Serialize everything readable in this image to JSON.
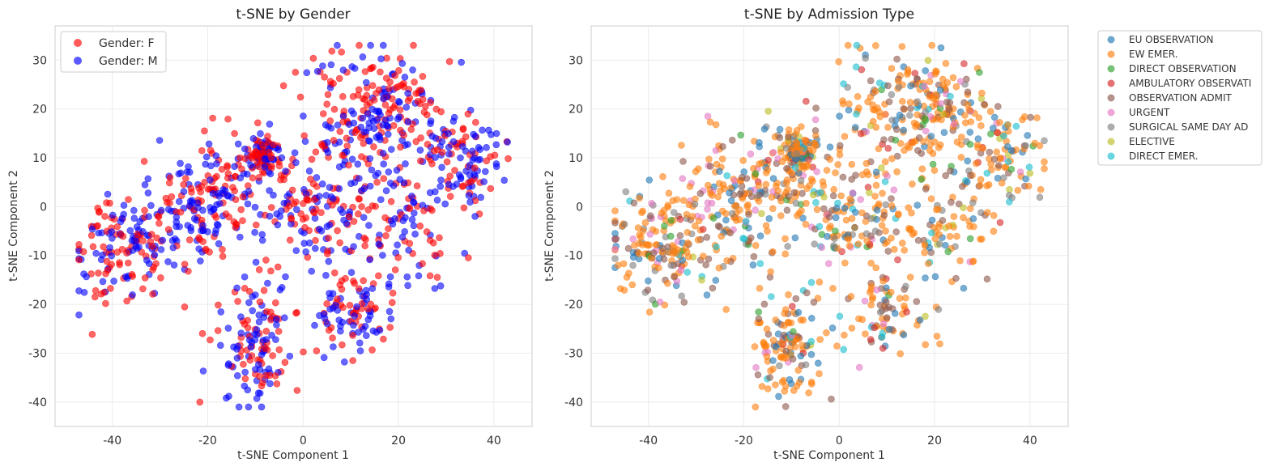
{
  "chart_data": [
    {
      "type": "scatter",
      "title": "t-SNE by Gender",
      "xlabel": "t-SNE Component 1",
      "ylabel": "t-SNE Component 2",
      "xlim": [
        -52,
        48
      ],
      "ylim": [
        -45,
        37
      ],
      "xticks": [
        -40,
        -20,
        0,
        20,
        40
      ],
      "yticks": [
        -40,
        -30,
        -20,
        -10,
        0,
        10,
        20,
        30
      ],
      "grid": true,
      "legend_position": "top-left",
      "series": [
        {
          "name": "Gender: F",
          "color": "#ff0000",
          "count": 640,
          "seed": 11
        },
        {
          "name": "Gender: M",
          "color": "#0000ff",
          "count": 640,
          "seed": 29
        }
      ]
    },
    {
      "type": "scatter",
      "title": "t-SNE by Admission Type",
      "xlabel": "t-SNE Component 1",
      "ylabel": "t-SNE Component 2",
      "xlim": [
        -52,
        48
      ],
      "ylim": [
        -45,
        37
      ],
      "xticks": [
        -40,
        -20,
        0,
        20,
        40
      ],
      "yticks": [
        -40,
        -30,
        -20,
        -10,
        0,
        10,
        20,
        30
      ],
      "grid": true,
      "legend_position": "outside-right",
      "series": [
        {
          "name": "EU OBSERVATION",
          "color": "#1f77b4",
          "count": 140,
          "seed": 3
        },
        {
          "name": "EW EMER.",
          "color": "#ff7f0e",
          "count": 620,
          "seed": 5
        },
        {
          "name": "DIRECT OBSERVATION",
          "color": "#2ca02c",
          "count": 40,
          "seed": 7
        },
        {
          "name": "AMBULATORY OBSERVATI",
          "color": "#d62728",
          "count": 35,
          "seed": 9
        },
        {
          "name": "OBSERVATION ADMIT",
          "color": "#8c564b",
          "count": 190,
          "seed": 13
        },
        {
          "name": "URGENT",
          "color": "#e377c2",
          "count": 80,
          "seed": 17
        },
        {
          "name": "SURGICAL SAME DAY AD",
          "color": "#7f7f7f",
          "count": 90,
          "seed": 19
        },
        {
          "name": "ELECTIVE",
          "color": "#bcbd22",
          "count": 30,
          "seed": 23
        },
        {
          "name": "DIRECT EMER.",
          "color": "#17becf",
          "count": 60,
          "seed": 31
        }
      ]
    }
  ]
}
